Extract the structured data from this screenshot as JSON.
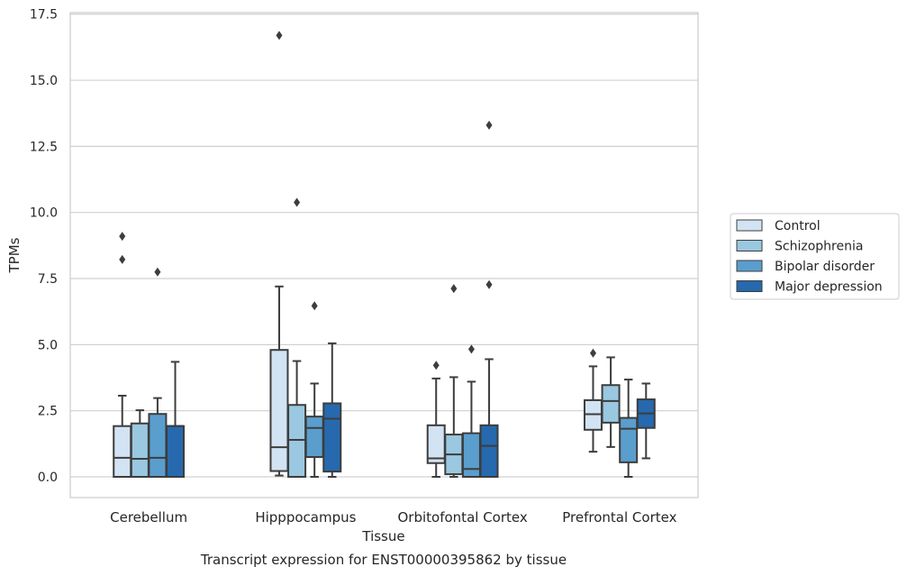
{
  "chart_data": {
    "type": "box",
    "title": "Transcript expression for ENST00000395862 by tissue",
    "xlabel": "Tissue",
    "ylabel": "TPMs",
    "ylim": [
      -0.8,
      17.6
    ],
    "yticks": [
      0.0,
      2.5,
      5.0,
      7.5,
      10.0,
      12.5,
      15.0,
      17.5
    ],
    "ytick_labels": [
      "0.0",
      "2.5",
      "5.0",
      "7.5",
      "10.0",
      "12.5",
      "15.0",
      "17.5"
    ],
    "grid": "horizontal",
    "legend_position": "right",
    "categories": [
      "Cerebellum",
      "Hipppocampus",
      "Orbitofontal Cortex",
      "Prefrontal Cortex"
    ],
    "series": [
      {
        "name": "Control",
        "color": "#d2e3f3",
        "boxes": [
          {
            "whislo": 0.0,
            "q1": 0.0,
            "med": 0.72,
            "q3": 1.92,
            "whishi": 3.07,
            "fliers": [
              9.1,
              8.22
            ]
          },
          {
            "whislo": 0.05,
            "q1": 0.22,
            "med": 1.12,
            "q3": 4.8,
            "whishi": 7.2,
            "fliers": [
              16.7
            ]
          },
          {
            "whislo": 0.0,
            "q1": 0.52,
            "med": 0.7,
            "q3": 1.95,
            "whishi": 3.72,
            "fliers": [
              4.22
            ]
          },
          {
            "whislo": 0.95,
            "q1": 1.78,
            "med": 2.37,
            "q3": 2.9,
            "whishi": 4.18,
            "fliers": [
              4.68
            ]
          }
        ]
      },
      {
        "name": "Schizophrenia",
        "color": "#9ac8e0",
        "boxes": [
          {
            "whislo": 0.0,
            "q1": 0.0,
            "med": 0.68,
            "q3": 2.02,
            "whishi": 2.52,
            "fliers": []
          },
          {
            "whislo": 0.0,
            "q1": 0.0,
            "med": 1.4,
            "q3": 2.72,
            "whishi": 4.38,
            "fliers": [
              10.38
            ]
          },
          {
            "whislo": 0.0,
            "q1": 0.1,
            "med": 0.85,
            "q3": 1.6,
            "whishi": 3.77,
            "fliers": [
              7.12
            ]
          },
          {
            "whislo": 1.13,
            "q1": 2.05,
            "med": 2.87,
            "q3": 3.47,
            "whishi": 4.52,
            "fliers": []
          }
        ]
      },
      {
        "name": "Bipolar disorder",
        "color": "#5a9ecd",
        "boxes": [
          {
            "whislo": 0.0,
            "q1": 0.0,
            "med": 0.72,
            "q3": 2.38,
            "whishi": 2.98,
            "fliers": [
              7.75
            ]
          },
          {
            "whislo": 0.0,
            "q1": 0.75,
            "med": 1.85,
            "q3": 2.28,
            "whishi": 3.53,
            "fliers": [
              6.47
            ]
          },
          {
            "whislo": 0.0,
            "q1": 0.0,
            "med": 0.3,
            "q3": 1.65,
            "whishi": 3.6,
            "fliers": [
              4.83
            ]
          },
          {
            "whislo": 0.0,
            "q1": 0.55,
            "med": 1.82,
            "q3": 2.23,
            "whishi": 3.68,
            "fliers": []
          }
        ]
      },
      {
        "name": "Major depression",
        "color": "#2669ae",
        "boxes": [
          {
            "whislo": 0.0,
            "q1": 0.0,
            "med": 1.92,
            "q3": 1.92,
            "whishi": 4.35,
            "fliers": []
          },
          {
            "whislo": 0.0,
            "q1": 0.2,
            "med": 2.2,
            "q3": 2.78,
            "whishi": 5.05,
            "fliers": []
          },
          {
            "whislo": 0.0,
            "q1": 0.0,
            "med": 1.17,
            "q3": 1.95,
            "whishi": 4.45,
            "fliers": [
              13.3,
              7.27
            ]
          },
          {
            "whislo": 0.7,
            "q1": 1.85,
            "med": 2.4,
            "q3": 2.93,
            "whishi": 3.53,
            "fliers": []
          }
        ]
      }
    ]
  }
}
